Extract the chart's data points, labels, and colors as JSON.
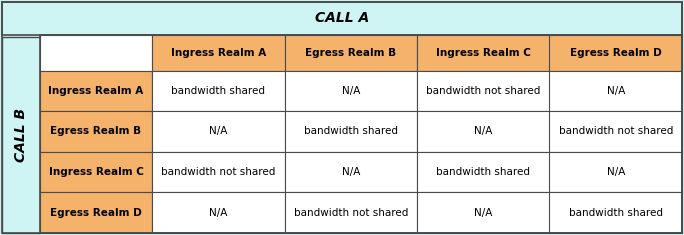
{
  "title": "CALL A",
  "row_label": "CALL B",
  "col_headers": [
    "Ingress Realm A",
    "Egress Realm B",
    "Ingress Realm C",
    "Egress Realm D"
  ],
  "row_headers": [
    "Ingress Realm A",
    "Egress Realm B",
    "Ingress Realm C",
    "Egress Realm D"
  ],
  "cell_data": [
    [
      "bandwidth shared",
      "N/A",
      "bandwidth not shared",
      "N/A"
    ],
    [
      "N/A",
      "bandwidth shared",
      "N/A",
      "bandwidth not shared"
    ],
    [
      "bandwidth not shared",
      "N/A",
      "bandwidth shared",
      "N/A"
    ],
    [
      "N/A",
      "bandwidth not shared",
      "N/A",
      "bandwidth shared"
    ]
  ],
  "title_bg": "#cef4f4",
  "header_bg": "#f5b26b",
  "row_header_bg": "#f5b26b",
  "cell_bg": "#ffffff",
  "outer_bg": "#cef4f4",
  "border_color": "#4a4a4a",
  "title_fontsize": 10,
  "header_fontsize": 7.5,
  "cell_fontsize": 7.5,
  "row_label_fontsize": 10,
  "figsize": [
    6.84,
    2.35
  ],
  "dpi": 100
}
